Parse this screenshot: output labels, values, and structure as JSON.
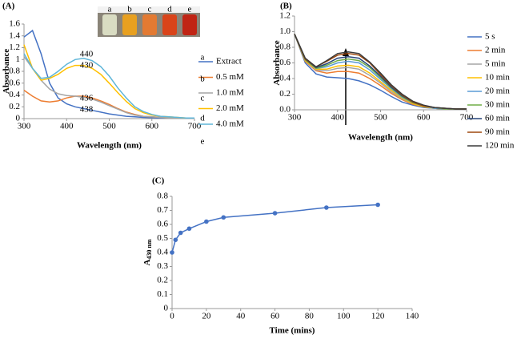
{
  "chart_data": [
    {
      "type": "line",
      "panel_label": "(A)",
      "x_label": "Wavelength (nm)",
      "y_label": "Absorbance",
      "xlim": [
        300,
        700
      ],
      "xticks": [
        300,
        400,
        500,
        600,
        700
      ],
      "ylim": [
        0,
        1.6
      ],
      "yticks": [
        0,
        0.2,
        0.4,
        0.6,
        0.8,
        1,
        1.2,
        1.4,
        1.6
      ],
      "grid": false,
      "legend": "right",
      "x": [
        300,
        320,
        340,
        360,
        380,
        400,
        420,
        440,
        460,
        480,
        500,
        520,
        540,
        560,
        580,
        600,
        620,
        640,
        660,
        680,
        700
      ],
      "series": [
        {
          "name": "Extract",
          "color": "#4472c4",
          "values": [
            1.38,
            1.49,
            1.1,
            0.6,
            0.35,
            0.25,
            0.2,
            0.17,
            0.14,
            0.11,
            0.08,
            0.06,
            0.04,
            0.03,
            0.02,
            0.015,
            0.01,
            0.01,
            0.01,
            0.01,
            0.01
          ]
        },
        {
          "name": "0.5 mM",
          "color": "#ed7d31",
          "values": [
            0.48,
            0.38,
            0.3,
            0.28,
            0.3,
            0.35,
            0.38,
            0.38,
            0.35,
            0.3,
            0.24,
            0.17,
            0.11,
            0.07,
            0.04,
            0.03,
            0.02,
            0.01,
            0.01,
            0.01,
            0.01
          ]
        },
        {
          "name": "1.0 mM",
          "color": "#a5a5a5",
          "values": [
            1.05,
            0.85,
            0.65,
            0.5,
            0.42,
            0.39,
            0.38,
            0.36,
            0.33,
            0.28,
            0.22,
            0.16,
            0.1,
            0.06,
            0.04,
            0.03,
            0.02,
            0.01,
            0.01,
            0.01,
            0.01
          ]
        },
        {
          "name": "2.0 mM",
          "color": "#ffc000",
          "values": [
            1.25,
            0.85,
            0.65,
            0.68,
            0.75,
            0.85,
            0.9,
            0.9,
            0.85,
            0.75,
            0.6,
            0.44,
            0.29,
            0.17,
            0.1,
            0.06,
            0.04,
            0.03,
            0.02,
            0.01,
            0.01
          ]
        },
        {
          "name": "4.0 mM",
          "color": "#5fb6d9",
          "values": [
            1.1,
            0.85,
            0.68,
            0.7,
            0.8,
            0.92,
            1.0,
            1.02,
            0.98,
            0.88,
            0.72,
            0.52,
            0.35,
            0.2,
            0.12,
            0.07,
            0.04,
            0.03,
            0.02,
            0.01,
            0.01
          ]
        }
      ],
      "annotations": [
        "440",
        "430",
        "436",
        "438"
      ],
      "inset_labels": [
        "a",
        "b",
        "c",
        "d",
        "e"
      ],
      "legend_letters": [
        "a",
        "b",
        "c",
        "d",
        "e"
      ]
    },
    {
      "type": "line",
      "panel_label": "(B)",
      "x_label": "Wavelength (nm)",
      "y_label": "Absorbance",
      "xlim": [
        300,
        700
      ],
      "xticks": [
        300,
        400,
        500,
        600,
        700
      ],
      "ylim": [
        0,
        1.2
      ],
      "yticks": [
        {
          "value": 0,
          "label": "0.0"
        },
        {
          "value": 0.2,
          "label": "0.2"
        },
        {
          "value": 0.4,
          "label": "0.4"
        },
        {
          "value": 0.6,
          "label": "0.6"
        },
        {
          "value": 0.8,
          "label": "0.8"
        },
        {
          "value": 1,
          "label": "1.0"
        },
        {
          "value": 1.2,
          "label": "1.2"
        }
      ],
      "grid": false,
      "legend": "right",
      "x": [
        300,
        325,
        350,
        375,
        400,
        425,
        450,
        475,
        500,
        525,
        550,
        575,
        600,
        625,
        650,
        675,
        700
      ],
      "series": [
        {
          "name": "5 s",
          "color": "#4472c4",
          "values": [
            0.97,
            0.6,
            0.46,
            0.42,
            0.41,
            0.4,
            0.37,
            0.32,
            0.25,
            0.17,
            0.1,
            0.06,
            0.03,
            0.02,
            0.01,
            0.01,
            0.01
          ]
        },
        {
          "name": "2 min",
          "color": "#ed7d31",
          "values": [
            0.97,
            0.62,
            0.5,
            0.47,
            0.49,
            0.49,
            0.47,
            0.4,
            0.31,
            0.21,
            0.13,
            0.07,
            0.04,
            0.02,
            0.01,
            0.01,
            0.01
          ]
        },
        {
          "name": "5 min",
          "color": "#a5a5a5",
          "values": [
            0.97,
            0.63,
            0.51,
            0.5,
            0.53,
            0.54,
            0.52,
            0.44,
            0.34,
            0.23,
            0.14,
            0.08,
            0.04,
            0.02,
            0.01,
            0.01,
            0.01
          ]
        },
        {
          "name": "10 min",
          "color": "#ffc000",
          "values": [
            0.97,
            0.63,
            0.52,
            0.52,
            0.56,
            0.57,
            0.55,
            0.47,
            0.36,
            0.25,
            0.15,
            0.08,
            0.04,
            0.02,
            0.01,
            0.01,
            0.01
          ]
        },
        {
          "name": "20 min",
          "color": "#5b9bd5",
          "values": [
            0.97,
            0.64,
            0.53,
            0.55,
            0.6,
            0.62,
            0.6,
            0.51,
            0.39,
            0.27,
            0.16,
            0.09,
            0.05,
            0.02,
            0.01,
            0.01,
            0.01
          ]
        },
        {
          "name": "30 min",
          "color": "#70ad47",
          "values": [
            0.97,
            0.64,
            0.53,
            0.57,
            0.63,
            0.65,
            0.63,
            0.54,
            0.41,
            0.28,
            0.17,
            0.09,
            0.05,
            0.03,
            0.01,
            0.01,
            0.01
          ]
        },
        {
          "name": "60 min",
          "color": "#264478",
          "values": [
            0.97,
            0.65,
            0.54,
            0.59,
            0.66,
            0.68,
            0.66,
            0.56,
            0.43,
            0.29,
            0.18,
            0.1,
            0.05,
            0.03,
            0.02,
            0.01,
            0.01
          ]
        },
        {
          "name": "90 min",
          "color": "#9e480e",
          "values": [
            0.97,
            0.65,
            0.55,
            0.62,
            0.7,
            0.72,
            0.7,
            0.6,
            0.45,
            0.31,
            0.19,
            0.1,
            0.05,
            0.03,
            0.02,
            0.01,
            0.01
          ]
        },
        {
          "name": "120 min",
          "color": "#3a3a3a",
          "values": [
            0.97,
            0.66,
            0.55,
            0.63,
            0.72,
            0.74,
            0.72,
            0.61,
            0.47,
            0.32,
            0.2,
            0.11,
            0.06,
            0.03,
            0.02,
            0.01,
            0.01
          ]
        }
      ]
    },
    {
      "type": "line",
      "panel_label": "(C)",
      "x_label": "Time (mins)",
      "y_label": "A",
      "y_label_subscript": "430 nm",
      "xlim": [
        0,
        140
      ],
      "xticks": [
        0,
        20,
        40,
        60,
        80,
        100,
        120,
        140
      ],
      "ylim": [
        0,
        0.8
      ],
      "yticks": [
        0,
        0.1,
        0.2,
        0.3,
        0.4,
        0.5,
        0.6,
        0.7,
        0.8
      ],
      "grid": false,
      "markers": true,
      "x": [
        0,
        2,
        5,
        10,
        20,
        30,
        60,
        90,
        120
      ],
      "series": [
        {
          "color": "#4472c4",
          "values": [
            0.4,
            0.49,
            0.54,
            0.57,
            0.62,
            0.65,
            0.68,
            0.72,
            0.74
          ]
        }
      ]
    }
  ]
}
